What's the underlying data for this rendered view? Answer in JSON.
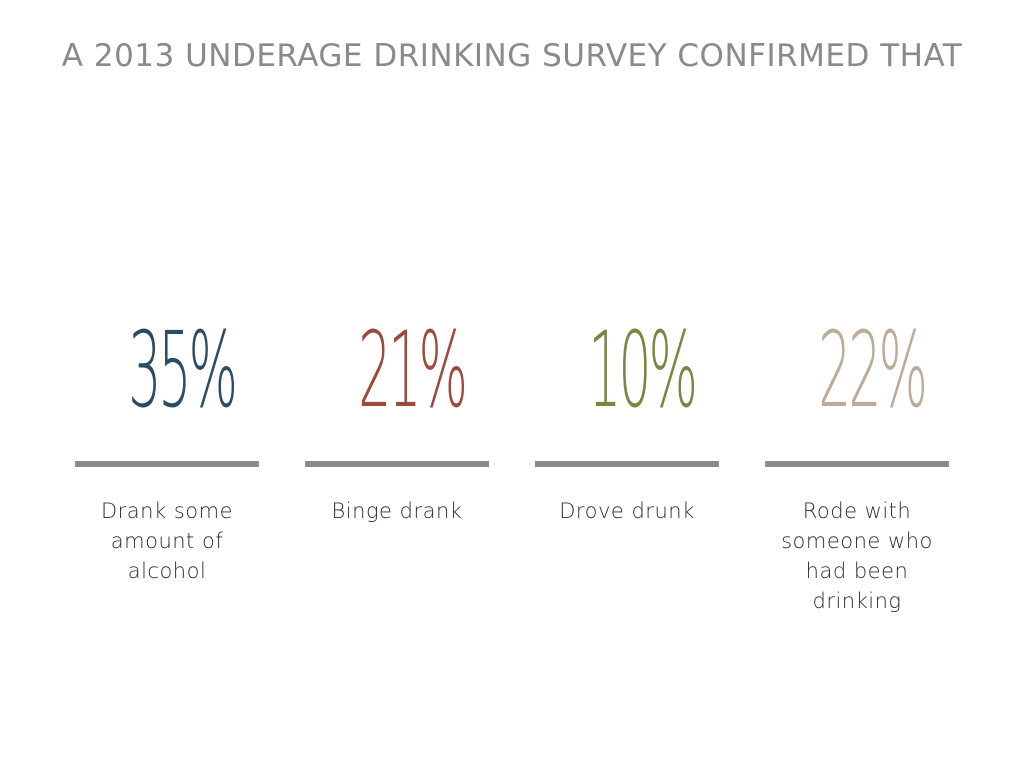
{
  "title": "A 2013 UNDERAGE DRINKING SURVEY CONFIRMED THAT",
  "stats": [
    {
      "value": "35%",
      "label": "Drank some amount of alcohol",
      "color": "#2b4d63"
    },
    {
      "value": "21%",
      "label": "Binge drank",
      "color": "#9b4a3c"
    },
    {
      "value": "10%",
      "label": "Drove drunk",
      "color": "#7f8442"
    },
    {
      "value": "22%",
      "label": "Rode with someone who had been drinking",
      "color": "#bcab98"
    }
  ],
  "chart_data": {
    "type": "bar",
    "title": "A 2013 UNDERAGE DRINKING SURVEY CONFIRMED THAT",
    "categories": [
      "Drank some amount of alcohol",
      "Binge drank",
      "Drove drunk",
      "Rode with someone who had been drinking"
    ],
    "values": [
      35,
      21,
      10,
      22
    ],
    "unit": "%",
    "colors": [
      "#2b4d63",
      "#9b4a3c",
      "#7f8442",
      "#bcab98"
    ],
    "grid": false
  }
}
